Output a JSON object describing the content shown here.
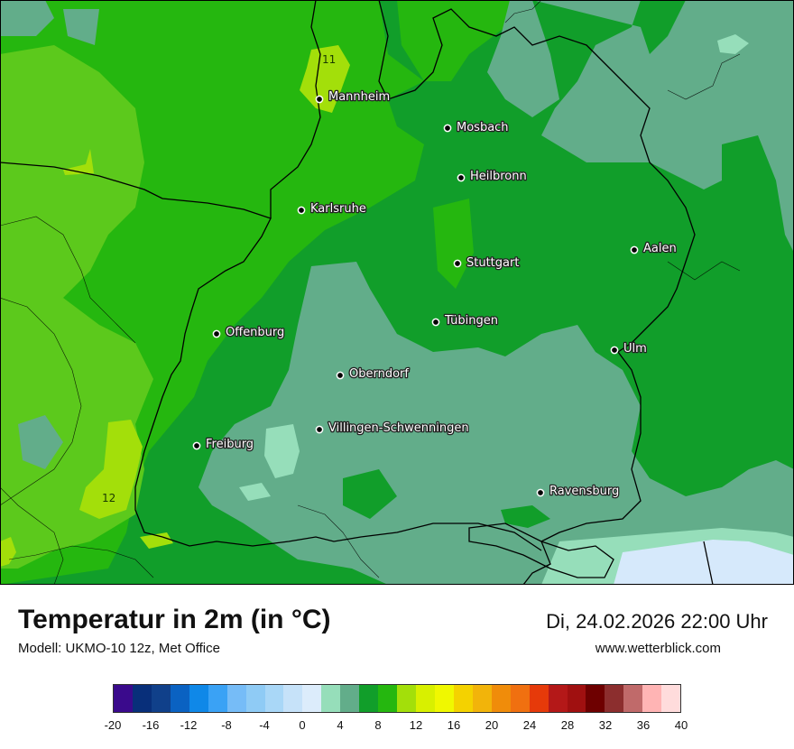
{
  "map": {
    "cities": [
      {
        "name": "Mannheim"
      },
      {
        "name": "Mosbach"
      },
      {
        "name": "Heilbronn"
      },
      {
        "name": "Karlsruhe"
      },
      {
        "name": "Aalen"
      },
      {
        "name": "Stuttgart"
      },
      {
        "name": "Tübingen"
      },
      {
        "name": "Offenburg"
      },
      {
        "name": "Ulm"
      },
      {
        "name": "Oberndorf"
      },
      {
        "name": "Villingen-Schwenningen"
      },
      {
        "name": "Freiburg"
      },
      {
        "name": "Ravensburg"
      }
    ],
    "isotherm_labels": [
      "11",
      "12"
    ],
    "colors": {
      "green_dark": "#119e2a",
      "green_mid": "#25b70f",
      "green_light": "#5cc91c",
      "yellow_green": "#a3df0a",
      "teal": "#62ad8a",
      "mint": "#96deba",
      "ice": "#d6e9fb"
    }
  },
  "footer": {
    "title": "Temperatur in 2m (in °C)",
    "model": "Modell: UKMO-10 12z, Met Office",
    "datetime": "Di, 24.02.2026 22:00 Uhr",
    "website": "www.wetterblick.com"
  },
  "legend": {
    "colors": [
      "#3a0a8c",
      "#082f7a",
      "#10408a",
      "#0a62c2",
      "#0f88e8",
      "#3aa2f5",
      "#76bcf7",
      "#8fcbf5",
      "#a9d7f7",
      "#c6e2f9",
      "#dcecfb",
      "#96deba",
      "#62ad8a",
      "#119e2a",
      "#25b70f",
      "#a3df0a",
      "#d8f000",
      "#f0f800",
      "#f4d200",
      "#f2b40a",
      "#f08c0a",
      "#f07010",
      "#e63a0a",
      "#b41818",
      "#a01010",
      "#6e0000",
      "#8c2e2e",
      "#c06a6a",
      "#ffb4b4",
      "#ffdcdc"
    ],
    "ticks": [
      "-20",
      "-16",
      "-12",
      "-8",
      "-4",
      "0",
      "4",
      "8",
      "12",
      "16",
      "20",
      "24",
      "28",
      "32",
      "36",
      "40"
    ]
  }
}
